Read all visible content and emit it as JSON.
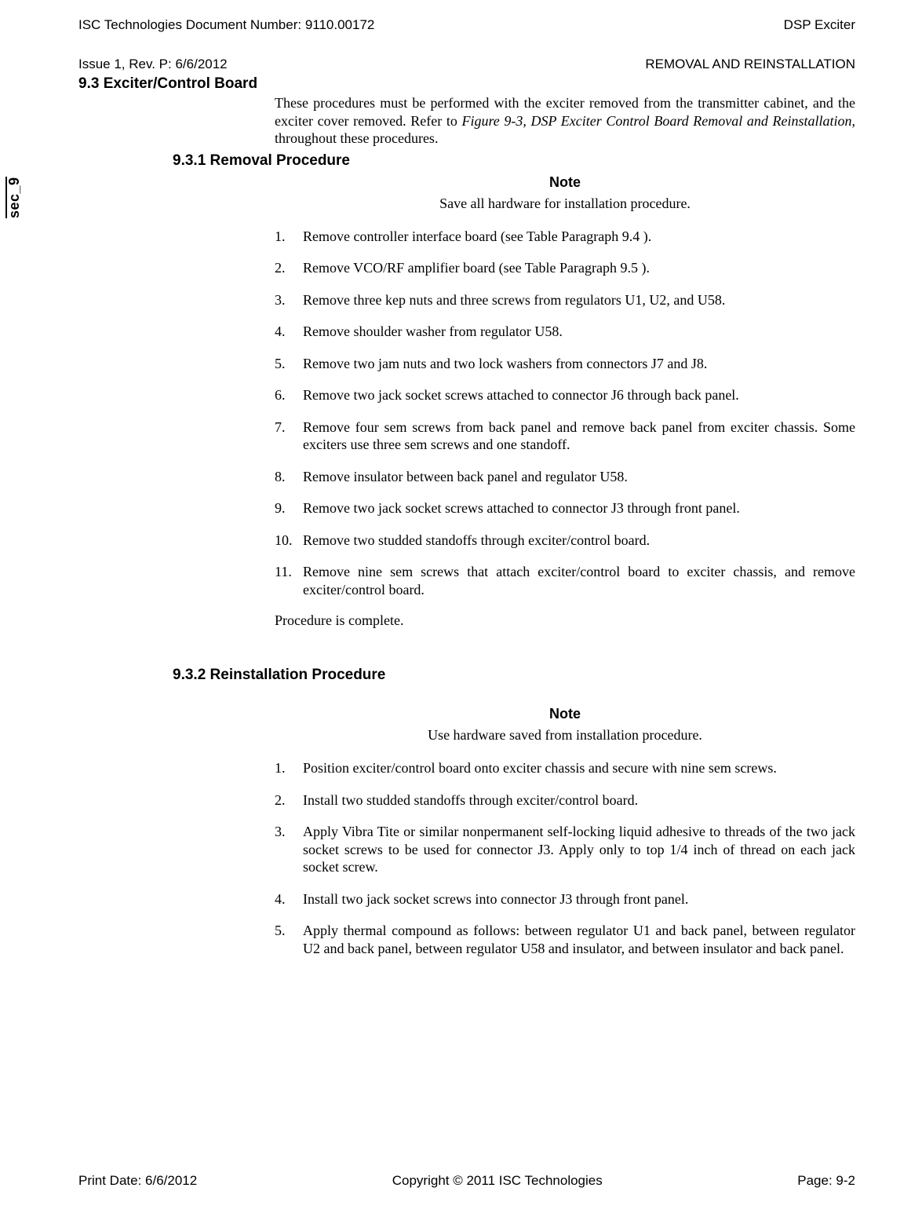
{
  "header": {
    "doc_number": "ISC Technologies Document Number: 9110.00172",
    "product": "DSP Exciter",
    "issue": "Issue 1, Rev. P: 6/6/2012",
    "section_label": "REMOVAL AND REINSTALLATION"
  },
  "side_tab": "sec_9",
  "section_9_3": {
    "title": "9.3 Exciter/Control Board",
    "intro_pre": "These procedures must be performed with the exciter removed from the transmitter cabinet, and the exciter cover removed. Refer to ",
    "intro_italic": "Figure 9-3, DSP Exciter Control Board Removal and Reinstallation,",
    "intro_post": " throughout these procedures."
  },
  "section_9_3_1": {
    "title": "9.3.1 Removal Procedure",
    "note_label": "Note",
    "note_text": "Save all hardware for installation procedure.",
    "steps": [
      "Remove controller interface board (see Table Paragraph 9.4 ).",
      "Remove VCO/RF amplifier board (see Table Paragraph 9.5 ).",
      "Remove three kep nuts and three screws from regulators U1, U2, and U58.",
      "Remove shoulder washer from regulator U58.",
      "Remove two jam nuts and two lock washers from connectors J7 and J8.",
      "Remove two jack socket screws attached to connector J6 through back panel.",
      "Remove four sem screws from back panel and remove back panel from exciter chassis. Some exciters use three sem screws and one standoff.",
      "Remove insulator between back panel and regulator U58.",
      "Remove two jack socket screws attached to connector J3 through front panel.",
      "Remove two studded standoffs through exciter/control board.",
      "Remove nine sem screws that attach exciter/control board to exciter chassis, and remove exciter/control board."
    ],
    "complete": "Procedure is complete."
  },
  "section_9_3_2": {
    "title": "9.3.2 Reinstallation Procedure",
    "note_label": "Note",
    "note_text": "Use hardware saved from installation procedure.",
    "steps": [
      "Position exciter/control board onto exciter chassis and secure with nine sem screws.",
      "Install two studded standoffs through exciter/control board.",
      "Apply Vibra Tite or similar nonpermanent self-locking liquid adhesive to threads of the two jack socket screws to be used for connector J3. Apply only to top 1/4 inch of thread on each jack socket screw.",
      "Install two jack socket screws into connector J3 through front panel.",
      "Apply thermal compound as follows: between regulator U1 and back panel, between regulator U2 and back panel, between regulator U58 and insulator, and between insulator and back panel."
    ]
  },
  "footer": {
    "print_date": "Print Date: 6/6/2012",
    "copyright": "Copyright © 2011 ISC Technologies",
    "page": "Page: 9-2"
  },
  "colors": {
    "text": "#000000",
    "background": "#ffffff"
  }
}
